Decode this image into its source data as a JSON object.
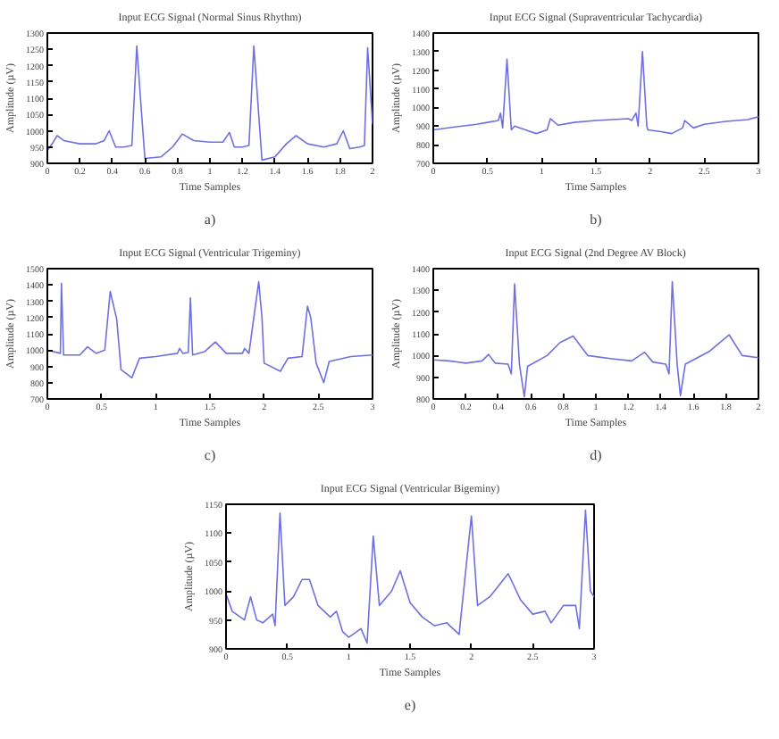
{
  "chart_data": [
    {
      "type": "line",
      "title": "Input ECG Signal (Normal Sinus Rhythm)",
      "xlabel": "Time Samples",
      "ylabel": "Amplitude (µV)",
      "annotations": [
        "a)"
      ],
      "xlim": [
        0,
        2
      ],
      "ylim": [
        900,
        1300
      ],
      "xticks": [
        0,
        0.2,
        0.4,
        0.6,
        0.8,
        1,
        1.2,
        1.4,
        1.6,
        1.8,
        2
      ],
      "yticks": [
        900,
        950,
        1000,
        1050,
        1100,
        1150,
        1200,
        1250,
        1300
      ],
      "grid": false,
      "line_style": "solid",
      "series": [
        {
          "color": "#6f6fe0",
          "x": [
            0,
            0.03,
            0.06,
            0.1,
            0.2,
            0.3,
            0.35,
            0.38,
            0.42,
            0.47,
            0.52,
            0.55,
            0.58,
            0.6,
            0.7,
            0.77,
            0.83,
            0.9,
            1.0,
            1.08,
            1.12,
            1.15,
            1.2,
            1.24,
            1.27,
            1.3,
            1.32,
            1.4,
            1.47,
            1.53,
            1.6,
            1.7,
            1.78,
            1.82,
            1.86,
            1.92,
            1.95,
            1.97,
            2.0
          ],
          "values": [
            940,
            960,
            985,
            970,
            960,
            960,
            970,
            1000,
            950,
            950,
            955,
            1260,
            1050,
            915,
            920,
            950,
            990,
            970,
            965,
            965,
            995,
            950,
            950,
            955,
            1260,
            1050,
            910,
            920,
            960,
            985,
            960,
            950,
            960,
            1000,
            945,
            950,
            955,
            1255,
            1020
          ]
        }
      ]
    },
    {
      "type": "line",
      "title": "Input ECG Signal (Supraventricular Tachycardia)",
      "xlabel": "Time Samples",
      "ylabel": "Amplitude (µV)",
      "annotations": [
        "b)"
      ],
      "xlim": [
        0,
        3
      ],
      "ylim": [
        700,
        1400
      ],
      "xticks": [
        0,
        0.5,
        1,
        1.5,
        2,
        2.5,
        3
      ],
      "yticks": [
        700,
        800,
        900,
        1000,
        1100,
        1200,
        1300,
        1400
      ],
      "grid": false,
      "line_style": "solid",
      "series": [
        {
          "color": "#6f6fe0",
          "x": [
            0,
            0.2,
            0.4,
            0.5,
            0.6,
            0.62,
            0.64,
            0.68,
            0.72,
            0.75,
            0.85,
            0.95,
            1.05,
            1.08,
            1.15,
            1.3,
            1.5,
            1.8,
            1.83,
            1.87,
            1.89,
            1.93,
            1.97,
            1.98,
            2.1,
            2.2,
            2.3,
            2.32,
            2.4,
            2.5,
            2.7,
            2.9,
            3.0
          ],
          "values": [
            880,
            895,
            910,
            920,
            930,
            970,
            890,
            1260,
            880,
            900,
            880,
            860,
            880,
            940,
            905,
            920,
            930,
            940,
            930,
            970,
            900,
            1300,
            900,
            880,
            870,
            860,
            890,
            930,
            890,
            910,
            925,
            935,
            950
          ]
        }
      ]
    },
    {
      "type": "line",
      "title": "Input ECG Signal (Ventricular Trigeminy)",
      "xlabel": "Time Samples",
      "ylabel": "Amplitude (µV)",
      "annotations": [
        "c)"
      ],
      "xlim": [
        0,
        3
      ],
      "ylim": [
        700,
        1500
      ],
      "xticks": [
        0,
        0.5,
        1,
        1.5,
        2,
        2.5,
        3
      ],
      "yticks": [
        700,
        800,
        900,
        1000,
        1100,
        1200,
        1300,
        1400,
        1500
      ],
      "grid": false,
      "line_style": "solid",
      "series": [
        {
          "color": "#6f6fe0",
          "x": [
            0,
            0.12,
            0.13,
            0.15,
            0.3,
            0.37,
            0.45,
            0.53,
            0.58,
            0.64,
            0.68,
            0.78,
            0.85,
            1.0,
            1.2,
            1.22,
            1.25,
            1.3,
            1.32,
            1.34,
            1.45,
            1.55,
            1.65,
            1.8,
            1.82,
            1.86,
            1.95,
            1.98,
            2.0,
            2.15,
            2.22,
            2.35,
            2.4,
            2.43,
            2.48,
            2.55,
            2.6,
            2.8,
            3.0
          ],
          "values": [
            1000,
            980,
            1410,
            970,
            970,
            1020,
            980,
            1000,
            1360,
            1190,
            880,
            830,
            950,
            960,
            980,
            1010,
            980,
            985,
            1320,
            970,
            990,
            1050,
            980,
            980,
            1010,
            980,
            1420,
            1200,
            920,
            870,
            950,
            960,
            1270,
            1200,
            920,
            800,
            930,
            960,
            970
          ]
        }
      ]
    },
    {
      "type": "line",
      "title": "Input ECG Signal (2nd Degree AV Block)",
      "xlabel": "Time Samples",
      "ylabel": "Amplitude (µV)",
      "annotations": [
        "d)"
      ],
      "xlim": [
        0,
        2
      ],
      "ylim": [
        800,
        1400
      ],
      "xticks": [
        0,
        0.2,
        0.4,
        0.6,
        0.8,
        1,
        1.2,
        1.4,
        1.6,
        1.8,
        2
      ],
      "yticks": [
        800,
        900,
        1000,
        1100,
        1200,
        1300,
        1400
      ],
      "grid": false,
      "line_style": "solid",
      "series": [
        {
          "color": "#6f6fe0",
          "x": [
            0,
            0.1,
            0.2,
            0.3,
            0.34,
            0.38,
            0.46,
            0.48,
            0.5,
            0.53,
            0.56,
            0.58,
            0.7,
            0.78,
            0.86,
            0.95,
            1.1,
            1.22,
            1.3,
            1.35,
            1.43,
            1.45,
            1.47,
            1.5,
            1.52,
            1.55,
            1.7,
            1.82,
            1.9,
            2.0
          ],
          "values": [
            980,
            975,
            965,
            975,
            1005,
            965,
            960,
            915,
            1330,
            960,
            810,
            950,
            1000,
            1060,
            1090,
            1000,
            985,
            975,
            1015,
            970,
            960,
            915,
            1340,
            960,
            815,
            960,
            1020,
            1095,
            1000,
            990
          ]
        }
      ]
    },
    {
      "type": "line",
      "title": "Input ECG Signal (Ventricular Bigeminy)",
      "xlabel": "Time Samples",
      "ylabel": "Amplitude (µV)",
      "annotations": [
        "e)"
      ],
      "xlim": [
        0,
        3
      ],
      "ylim": [
        900,
        1150
      ],
      "xticks": [
        0,
        0.5,
        1,
        1.5,
        2,
        2.5,
        3
      ],
      "yticks": [
        900,
        950,
        1000,
        1050,
        1100,
        1150
      ],
      "grid": false,
      "line_style": "solid",
      "series": [
        {
          "color": "#6f6fe0",
          "x": [
            0,
            0.05,
            0.15,
            0.2,
            0.25,
            0.3,
            0.38,
            0.4,
            0.44,
            0.48,
            0.55,
            0.62,
            0.68,
            0.75,
            0.85,
            0.9,
            0.95,
            1.0,
            1.1,
            1.15,
            1.2,
            1.25,
            1.35,
            1.42,
            1.5,
            1.6,
            1.7,
            1.8,
            1.9,
            2.0,
            2.05,
            2.15,
            2.3,
            2.4,
            2.5,
            2.6,
            2.65,
            2.75,
            2.85,
            2.88,
            2.93,
            2.97,
            3.0
          ],
          "values": [
            995,
            965,
            950,
            990,
            950,
            945,
            960,
            940,
            1135,
            975,
            990,
            1020,
            1020,
            975,
            955,
            965,
            930,
            920,
            935,
            910,
            1095,
            975,
            1000,
            1035,
            980,
            955,
            940,
            945,
            925,
            1130,
            975,
            990,
            1030,
            985,
            960,
            965,
            945,
            975,
            975,
            935,
            1140,
            1000,
            990
          ]
        }
      ]
    }
  ]
}
